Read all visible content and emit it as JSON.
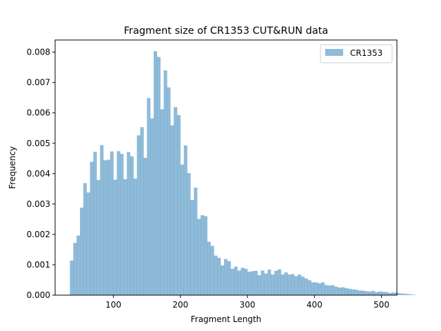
{
  "chart_data": {
    "type": "bar",
    "title": "Fragment size of CR1353 CUT&RUN data",
    "xlabel": "Fragment Length",
    "ylabel": "Frequency",
    "xlim": [
      13,
      523
    ],
    "ylim": [
      0,
      0.0084
    ],
    "xticks": [
      100,
      200,
      300,
      400,
      500
    ],
    "xtick_labels": [
      "100",
      "200",
      "300",
      "400",
      "500"
    ],
    "yticks": [
      0,
      0.001,
      0.002,
      0.003,
      0.004,
      0.005,
      0.006,
      0.007,
      0.008
    ],
    "ytick_labels": [
      "0.000",
      "0.001",
      "0.002",
      "0.003",
      "0.004",
      "0.005",
      "0.006",
      "0.007",
      "0.008"
    ],
    "grid": false,
    "legend_position": "top-right",
    "series": [
      {
        "name": "CR1353",
        "color": "#1f77b4",
        "alpha": 0.5,
        "bin_start": 35,
        "bin_width": 5,
        "values": [
          0.00114,
          0.00172,
          0.00196,
          0.00288,
          0.00369,
          0.00338,
          0.00439,
          0.00472,
          0.00379,
          0.00494,
          0.00444,
          0.00446,
          0.00473,
          0.0038,
          0.00474,
          0.00465,
          0.00382,
          0.00471,
          0.00457,
          0.00384,
          0.00526,
          0.00553,
          0.00452,
          0.00649,
          0.00582,
          0.00803,
          0.00784,
          0.00612,
          0.0074,
          0.00684,
          0.00559,
          0.00619,
          0.00593,
          0.0043,
          0.00493,
          0.00402,
          0.00313,
          0.00354,
          0.00251,
          0.00263,
          0.0026,
          0.00176,
          0.00162,
          0.0013,
          0.00123,
          0.00098,
          0.00119,
          0.00112,
          0.00087,
          0.00094,
          0.00081,
          0.0009,
          0.00087,
          0.00077,
          0.00079,
          0.0008,
          0.00066,
          0.00081,
          0.00071,
          0.00084,
          0.00068,
          0.0008,
          0.00085,
          0.00068,
          0.00075,
          0.00068,
          0.00069,
          0.00062,
          0.00068,
          0.00061,
          0.00055,
          0.00049,
          0.00042,
          0.00042,
          0.00039,
          0.00042,
          0.00033,
          0.00032,
          0.00033,
          0.00028,
          0.00025,
          0.00026,
          0.00023,
          0.00021,
          0.00019,
          0.00018,
          0.00015,
          0.00015,
          0.00013,
          0.00012,
          0.00014,
          0.0001,
          0.00012,
          0.00011,
          0.0001,
          7e-05,
          9e-05,
          8e-05,
          6e-05,
          5e-05,
          4e-05,
          3e-05,
          2e-05
        ]
      }
    ]
  }
}
